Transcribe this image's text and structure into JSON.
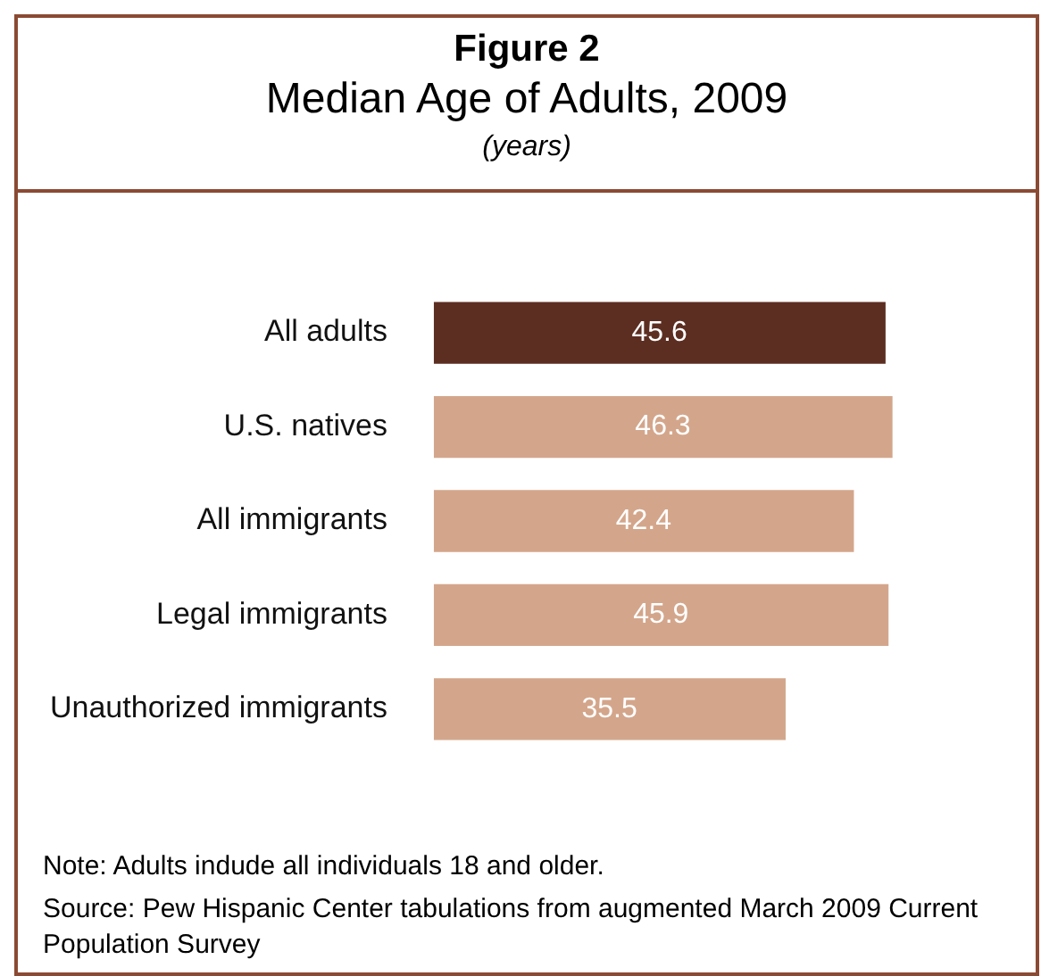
{
  "chart_data": {
    "type": "bar",
    "orientation": "horizontal",
    "title": "Figure 2",
    "subtitle": "Median Age of Adults, 2009",
    "categories": [
      "All adults",
      "U.S. natives",
      "All immigrants",
      "Legal immigrants",
      "Unauthorized immigrants"
    ],
    "values": [
      45.6,
      46.3,
      42.4,
      45.9,
      35.5
    ],
    "colors": [
      "#5c2e22",
      "#d3a68b",
      "#d3a68b",
      "#d3a68b",
      "#d3a68b"
    ],
    "data_labels": true,
    "legend": false,
    "annotations": [
      "(years)",
      "Note: Adults indude all individuals 18 and older.",
      "Source:  Pew Hispanic Center tabulations from augmented March 2009 Current Population Survey"
    ]
  }
}
